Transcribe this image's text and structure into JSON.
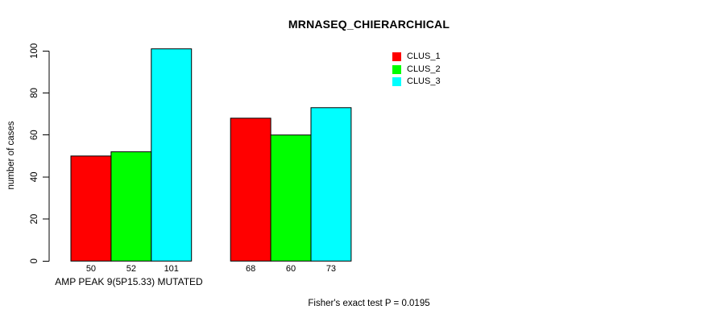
{
  "chart_data": {
    "type": "bar",
    "title": "MRNASEQ_CHIERARCHICAL",
    "ylabel": "number of cases",
    "xlabel": "AMP PEAK 9(5P15.33) MUTATED",
    "annotation": "Fisher's exact test P = 0.0195",
    "categories": [
      "AMP PEAK 9(5P15.33) MUTATED",
      ""
    ],
    "series": [
      {
        "name": "CLUS_1",
        "color": "#ff0000",
        "values": [
          50,
          68
        ]
      },
      {
        "name": "CLUS_2",
        "color": "#00ff00",
        "values": [
          52,
          60
        ]
      },
      {
        "name": "CLUS_3",
        "color": "#00ffff",
        "values": [
          101,
          73
        ]
      }
    ],
    "bar_value_labels": [
      [
        50,
        52,
        101
      ],
      [
        68,
        60,
        73
      ]
    ],
    "yticks": [
      0,
      20,
      40,
      60,
      80,
      100
    ],
    "ylim": [
      0,
      101
    ],
    "grid": false,
    "legend": {
      "position": "top-right-inside",
      "entries": [
        "CLUS_1",
        "CLUS_2",
        "CLUS_3"
      ]
    },
    "bar_border_color": "#000000",
    "axis_color": "#000000",
    "background_color": "#ffffff"
  }
}
